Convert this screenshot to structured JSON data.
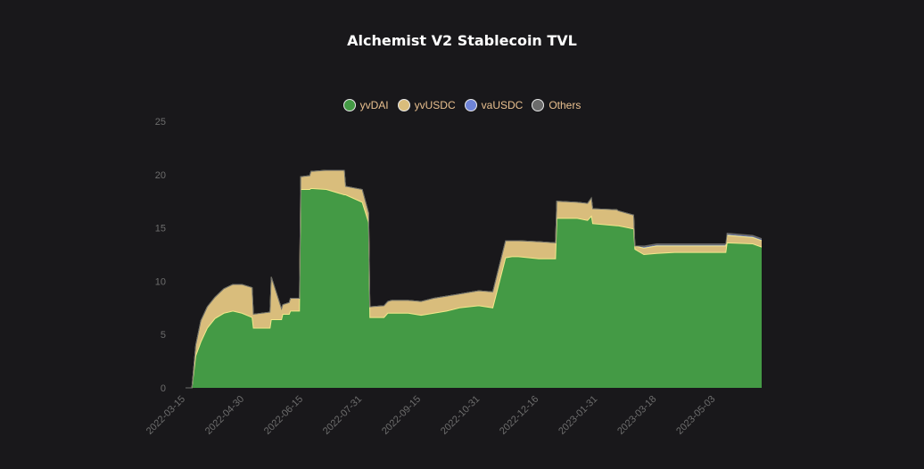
{
  "chart_data": {
    "type": "area",
    "stacked": true,
    "title": "Alchemist V2 Stablecoin TVL",
    "legend_position": "top-center",
    "ylim": [
      0,
      25
    ],
    "y_ticks": [
      0,
      5,
      10,
      15,
      20,
      25
    ],
    "x_ticks": [
      "2022-03-15",
      "2022-04-30",
      "2022-06-15",
      "2022-07-31",
      "2022-09-15",
      "2022-10-31",
      "2022-12-16",
      "2023-01-31",
      "2023-03-18",
      "2023-05-03"
    ],
    "x_range": [
      "2022-03-15",
      "2023-06-08"
    ],
    "x": [
      "2022-03-15",
      "2022-03-20",
      "2022-03-23",
      "2022-03-27",
      "2022-04-01",
      "2022-04-07",
      "2022-04-14",
      "2022-04-21",
      "2022-04-28",
      "2022-05-06",
      "2022-05-07",
      "2022-05-20",
      "2022-05-21",
      "2022-05-29",
      "2022-05-30",
      "2022-06-04",
      "2022-06-05",
      "2022-06-12",
      "2022-06-13",
      "2022-06-20",
      "2022-06-21",
      "2022-07-03",
      "2022-07-17",
      "2022-07-18",
      "2022-07-31",
      "2022-08-05",
      "2022-08-06",
      "2022-08-17",
      "2022-08-20",
      "2022-08-23",
      "2022-08-25",
      "2022-09-05",
      "2022-09-15",
      "2022-09-25",
      "2022-10-05",
      "2022-10-15",
      "2022-10-30",
      "2022-11-10",
      "2022-11-20",
      "2022-11-25",
      "2022-11-30",
      "2022-12-16",
      "2022-12-29",
      "2022-12-30",
      "2023-01-15",
      "2023-01-23",
      "2023-01-26",
      "2023-01-27",
      "2023-02-15",
      "2023-02-16",
      "2023-02-28",
      "2023-03-01",
      "2023-03-08",
      "2023-03-18",
      "2023-04-01",
      "2023-04-15",
      "2023-05-01",
      "2023-05-11",
      "2023-05-12",
      "2023-06-01",
      "2023-06-08"
    ],
    "series": [
      {
        "name": "yvDAI",
        "color": "#449a45",
        "values": [
          0,
          0,
          3.0,
          4.3,
          5.6,
          6.5,
          7.0,
          7.2,
          7.0,
          6.6,
          5.6,
          5.6,
          6.4,
          6.4,
          6.9,
          6.9,
          7.2,
          7.2,
          18.6,
          18.6,
          18.7,
          18.6,
          18.1,
          18.1,
          17.4,
          15.5,
          6.6,
          6.6,
          7.0,
          7.0,
          7.0,
          7.0,
          6.8,
          7.0,
          7.2,
          7.5,
          7.7,
          7.5,
          12.2,
          12.3,
          12.3,
          12.1,
          12.1,
          15.9,
          15.9,
          15.7,
          16.1,
          15.4,
          15.2,
          15.2,
          14.9,
          13.0,
          12.5,
          12.6,
          12.7,
          12.7,
          12.7,
          12.7,
          13.6,
          13.5,
          13.2
        ]
      },
      {
        "name": "yvUSDC",
        "color": "#d9bd7c",
        "values": [
          0,
          0,
          1.0,
          2.0,
          2.0,
          2.0,
          2.3,
          2.5,
          2.7,
          2.8,
          1.3,
          1.5,
          4.0,
          1.0,
          0.9,
          1.1,
          1.2,
          1.2,
          1.2,
          1.3,
          1.6,
          1.8,
          2.3,
          0.8,
          1.2,
          0.9,
          1.0,
          1.1,
          1.1,
          1.2,
          1.2,
          1.2,
          1.3,
          1.4,
          1.4,
          1.3,
          1.4,
          1.5,
          1.6,
          1.5,
          1.5,
          1.6,
          1.5,
          1.6,
          1.5,
          1.6,
          1.7,
          1.4,
          1.5,
          1.4,
          1.3,
          0.3,
          0.6,
          0.7,
          0.6,
          0.6,
          0.6,
          0.6,
          0.7,
          0.6,
          0.6
        ]
      },
      {
        "name": "vaUSDC",
        "color": "#6e83d7",
        "values": [
          0,
          0,
          0,
          0,
          0,
          0,
          0,
          0,
          0,
          0,
          0,
          0,
          0,
          0,
          0,
          0,
          0,
          0,
          0,
          0,
          0,
          0,
          0,
          0,
          0,
          0,
          0,
          0,
          0,
          0,
          0,
          0,
          0,
          0,
          0,
          0,
          0,
          0,
          0,
          0,
          0,
          0,
          0,
          0,
          0,
          0,
          0,
          0,
          0,
          0,
          0,
          0,
          0.1,
          0.1,
          0.1,
          0.1,
          0.1,
          0.1,
          0.1,
          0.1,
          0.1
        ]
      },
      {
        "name": "Others",
        "color": "#6b6b6b",
        "values": [
          0,
          0,
          0,
          0,
          0,
          0,
          0,
          0,
          0,
          0,
          0,
          0,
          0,
          0,
          0,
          0,
          0,
          0,
          0,
          0,
          0,
          0,
          0,
          0,
          0,
          0,
          0,
          0,
          0,
          0,
          0,
          0,
          0,
          0,
          0,
          0,
          0,
          0,
          0,
          0,
          0,
          0,
          0,
          0,
          0,
          0,
          0,
          0,
          0,
          0,
          0,
          0,
          0.1,
          0.1,
          0.1,
          0.1,
          0.1,
          0.1,
          0.1,
          0.1,
          0.1
        ]
      }
    ],
    "legend_border_color": "#e8e8e8",
    "legend_text_color": "#e9c08f",
    "outline_color": "#f2e88a"
  }
}
